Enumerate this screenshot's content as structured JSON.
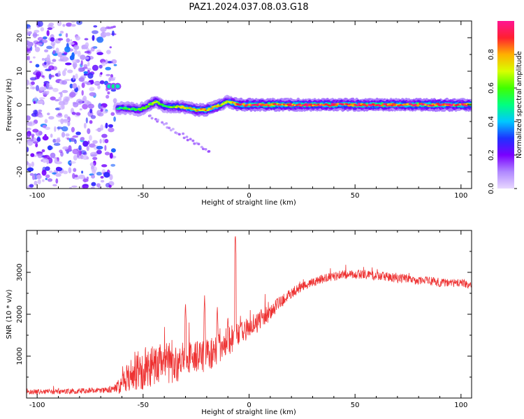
{
  "title": "PAZ1.2024.037.08.03.G18",
  "chart_data": [
    {
      "type": "heatmap",
      "title": "PAZ1.2024.037.08.03.G18",
      "xlabel": "Height of straight line (km)",
      "ylabel": "Frequency (Hz)",
      "xlim": [
        -105,
        105
      ],
      "ylim": [
        -25,
        25
      ],
      "xticks": [
        -100,
        -50,
        0,
        50,
        100
      ],
      "yticks": [
        -20,
        -10,
        0,
        10,
        20
      ],
      "xtick_labels": [
        "-100",
        "-50",
        "0",
        "50",
        "100"
      ],
      "ytick_labels": [
        "-20",
        "-10",
        "0",
        "10",
        "20"
      ],
      "grid": false,
      "colorbar": {
        "label": "Normalized spectral amplitude",
        "range": [
          0,
          1
        ],
        "ticks": [
          0.0,
          0.2,
          0.4,
          0.6,
          0.8
        ],
        "tick_labels": [
          "0.0",
          "0.2",
          "0.4",
          "0.6",
          "0.8"
        ],
        "colors": [
          "#e8d8ff",
          "#b088ff",
          "#7a00ff",
          "#1e32ff",
          "#00c8ff",
          "#00ff80",
          "#40ff00",
          "#d8ff00",
          "#ffb000",
          "#ff2030",
          "#ff1493"
        ]
      },
      "ridge": {
        "x": [
          -62,
          -57,
          -52,
          -48,
          -44,
          -40,
          -35,
          -30,
          -25,
          -20,
          -15,
          -10,
          -5,
          0,
          10,
          20,
          30,
          40,
          50,
          60,
          70,
          80,
          90,
          100,
          105
        ],
        "y": [
          -1.0,
          -1.0,
          -1.5,
          -0.5,
          1.0,
          -0.5,
          -0.5,
          -0.8,
          -1.5,
          -1.5,
          -0.5,
          1.0,
          0.0,
          0.0,
          0.0,
          0.0,
          0.0,
          0.0,
          0.0,
          0.0,
          0.0,
          0.0,
          0.0,
          0.0,
          0.0
        ],
        "amplitude": [
          0.55,
          0.6,
          0.6,
          0.65,
          0.7,
          0.6,
          0.7,
          0.75,
          0.8,
          0.85,
          0.75,
          0.7,
          0.9,
          0.95,
          0.95,
          0.9,
          0.9,
          0.95,
          0.95,
          0.95,
          0.9,
          0.95,
          0.95,
          0.9,
          0.9
        ]
      },
      "secondary_signal": {
        "x": [
          -66,
          -64,
          -62
        ],
        "y": [
          5.5,
          5.5,
          5.5
        ],
        "amplitude": [
          0.45,
          0.5,
          0.45
        ]
      },
      "noise_region": {
        "x": [
          -105,
          -63
        ],
        "y": [
          -25,
          25
        ]
      }
    },
    {
      "type": "line",
      "xlabel": "Height of straight line (km)",
      "ylabel": "SNR (10 * v/v)",
      "xlim": [
        -105,
        105
      ],
      "ylim": [
        0,
        4000
      ],
      "xticks": [
        -100,
        -50,
        0,
        50,
        100
      ],
      "yticks": [
        1000,
        2000,
        3000
      ],
      "xtick_labels": [
        "-100",
        "-50",
        "0",
        "50",
        "100"
      ],
      "ytick_labels": [
        "1000",
        "2000",
        "3000"
      ],
      "grid": false,
      "series": [
        {
          "color": "#ee3333",
          "x": [
            -105,
            -90,
            -75,
            -65,
            -60,
            -58,
            -55,
            -50,
            -45,
            -40,
            -35,
            -30,
            -25,
            -20,
            -15,
            -10,
            -5,
            0,
            5,
            10,
            15,
            20,
            25,
            30,
            35,
            40,
            45,
            50,
            55,
            60,
            65,
            70,
            75,
            80,
            85,
            90,
            95,
            100,
            105
          ],
          "y": [
            150,
            150,
            180,
            200,
            300,
            450,
            650,
            700,
            800,
            850,
            800,
            900,
            950,
            1000,
            1150,
            1350,
            1500,
            1650,
            1850,
            2050,
            2300,
            2500,
            2650,
            2750,
            2850,
            2900,
            2950,
            2950,
            2950,
            2900,
            2900,
            2850,
            2850,
            2800,
            2800,
            2750,
            2750,
            2750,
            2700
          ],
          "noise_amplitude": [
            60,
            60,
            70,
            80,
            200,
            350,
            450,
            500,
            500,
            500,
            450,
            450,
            400,
            400,
            350,
            350,
            300,
            280,
            250,
            200,
            160,
            140,
            120,
            110,
            110,
            110,
            110,
            110,
            110,
            110,
            110,
            110,
            100,
            100,
            100,
            100,
            100,
            100,
            100
          ]
        }
      ],
      "spikes": [
        {
          "x": -6.5,
          "y": 3950
        },
        {
          "x": -30,
          "y": 2300
        },
        {
          "x": -21,
          "y": 2450
        },
        {
          "x": -15,
          "y": 2200
        },
        {
          "x": -10,
          "y": 2000
        }
      ]
    }
  ]
}
